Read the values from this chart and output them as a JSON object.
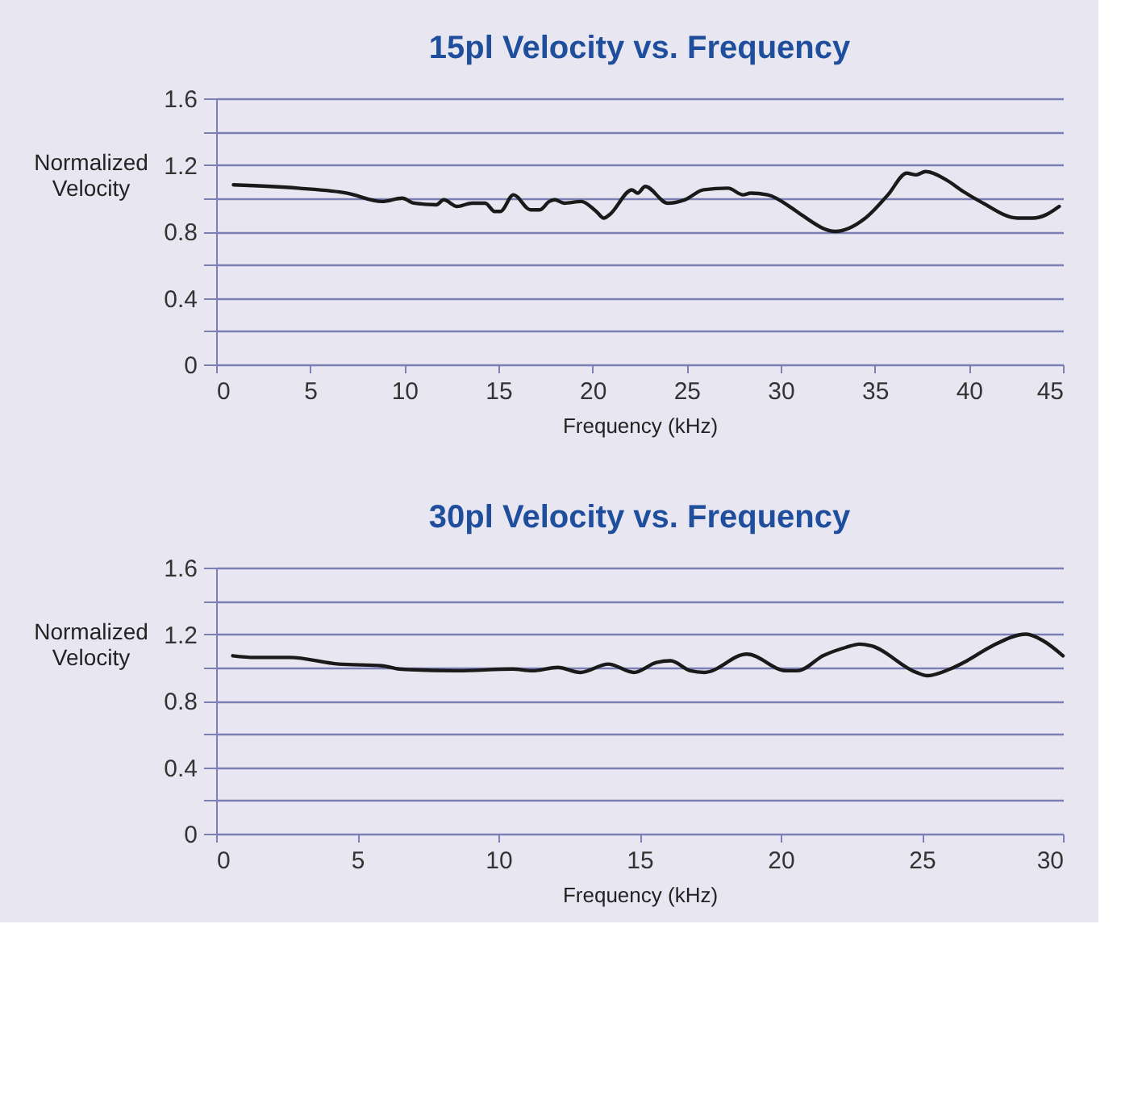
{
  "chart_data": [
    {
      "type": "line",
      "title": "15pl Velocity vs. Frequency",
      "xlabel": "Frequency (kHz)",
      "ylabel": "Normalized Velocity",
      "xlim": [
        0,
        45
      ],
      "xticks": [
        0,
        5,
        10,
        15,
        20,
        25,
        30,
        35,
        40,
        45
      ],
      "ylim": [
        0,
        1.6
      ],
      "yticks": [
        0,
        {
          "value": 0.2,
          "label": null
        },
        0.4,
        {
          "value": 0.6,
          "label": null
        },
        0.8,
        {
          "value": 1.0,
          "label": null
        },
        1.2,
        {
          "value": 1.4,
          "label": null
        },
        1.6
      ],
      "grid": "y",
      "x": [
        0.92,
        4.36,
        6.97,
        8.82,
        9.89,
        10.5,
        11.7,
        12.1,
        12.8,
        13.6,
        14.3,
        14.8,
        15.1,
        15.8,
        16.7,
        17.2,
        17.7,
        18.0,
        18.5,
        19.4,
        20.2,
        20.6,
        20.9,
        22.1,
        22.4,
        22.8,
        24.0,
        24.9,
        25.9,
        27.2,
        28.0,
        28.4,
        29.3,
        30.6,
        31.1,
        32.9,
        34.5,
        35.7,
        36.7,
        37.2,
        37.7,
        38.8,
        39.7,
        40.6,
        42.6,
        43.4,
        44.1,
        44.8
      ],
      "series": [
        {
          "color": "#1a1a1a",
          "values": [
            1.08,
            1.06,
            1.03,
            0.98,
            1.0,
            0.97,
            0.96,
            0.99,
            0.95,
            0.97,
            0.97,
            0.92,
            0.92,
            1.02,
            0.93,
            0.93,
            0.98,
            0.99,
            0.97,
            0.98,
            0.92,
            0.88,
            0.9,
            1.05,
            1.03,
            1.07,
            0.97,
            0.99,
            1.05,
            1.06,
            1.02,
            1.03,
            1.02,
            0.94,
            0.9,
            0.8,
            0.88,
            1.02,
            1.15,
            1.14,
            1.16,
            1.11,
            1.04,
            0.98,
            0.88,
            0.88,
            0.9,
            0.95
          ]
        }
      ]
    },
    {
      "type": "line",
      "title": "30pl Velocity vs. Frequency",
      "xlabel": "Frequency (kHz)",
      "ylabel": "Normalized Velocity",
      "xlim": [
        0,
        30
      ],
      "xticks": [
        0,
        5,
        10,
        15,
        20,
        25,
        30
      ],
      "ylim": [
        0,
        1.6
      ],
      "yticks": [
        0,
        {
          "value": 0.2,
          "label": null
        },
        0.4,
        {
          "value": 0.6,
          "label": null
        },
        0.8,
        {
          "value": 1.0,
          "label": null
        },
        1.2,
        {
          "value": 1.4,
          "label": null
        },
        1.6
      ],
      "grid": "y",
      "x": [
        0.59,
        1.37,
        2.6,
        4.34,
        5.88,
        6.49,
        8.54,
        10.49,
        11.2,
        12.1,
        12.9,
        13.9,
        14.8,
        15.6,
        16.1,
        16.8,
        17.3,
        18.8,
        20.2,
        20.6,
        21.5,
        22.3,
        22.8,
        23.2,
        24.8,
        25.2,
        26.0,
        26.6,
        27.5,
        28.7,
        29.3,
        30.0
      ],
      "series": [
        {
          "color": "#1a1a1a",
          "values": [
            1.07,
            1.06,
            1.06,
            1.02,
            1.01,
            0.99,
            0.98,
            0.99,
            0.98,
            1.0,
            0.97,
            1.02,
            0.97,
            1.03,
            1.04,
            0.98,
            0.97,
            1.08,
            0.98,
            0.98,
            1.07,
            1.12,
            1.14,
            1.13,
            0.97,
            0.95,
            0.99,
            1.04,
            1.13,
            1.2,
            1.16,
            1.07
          ]
        }
      ]
    }
  ]
}
